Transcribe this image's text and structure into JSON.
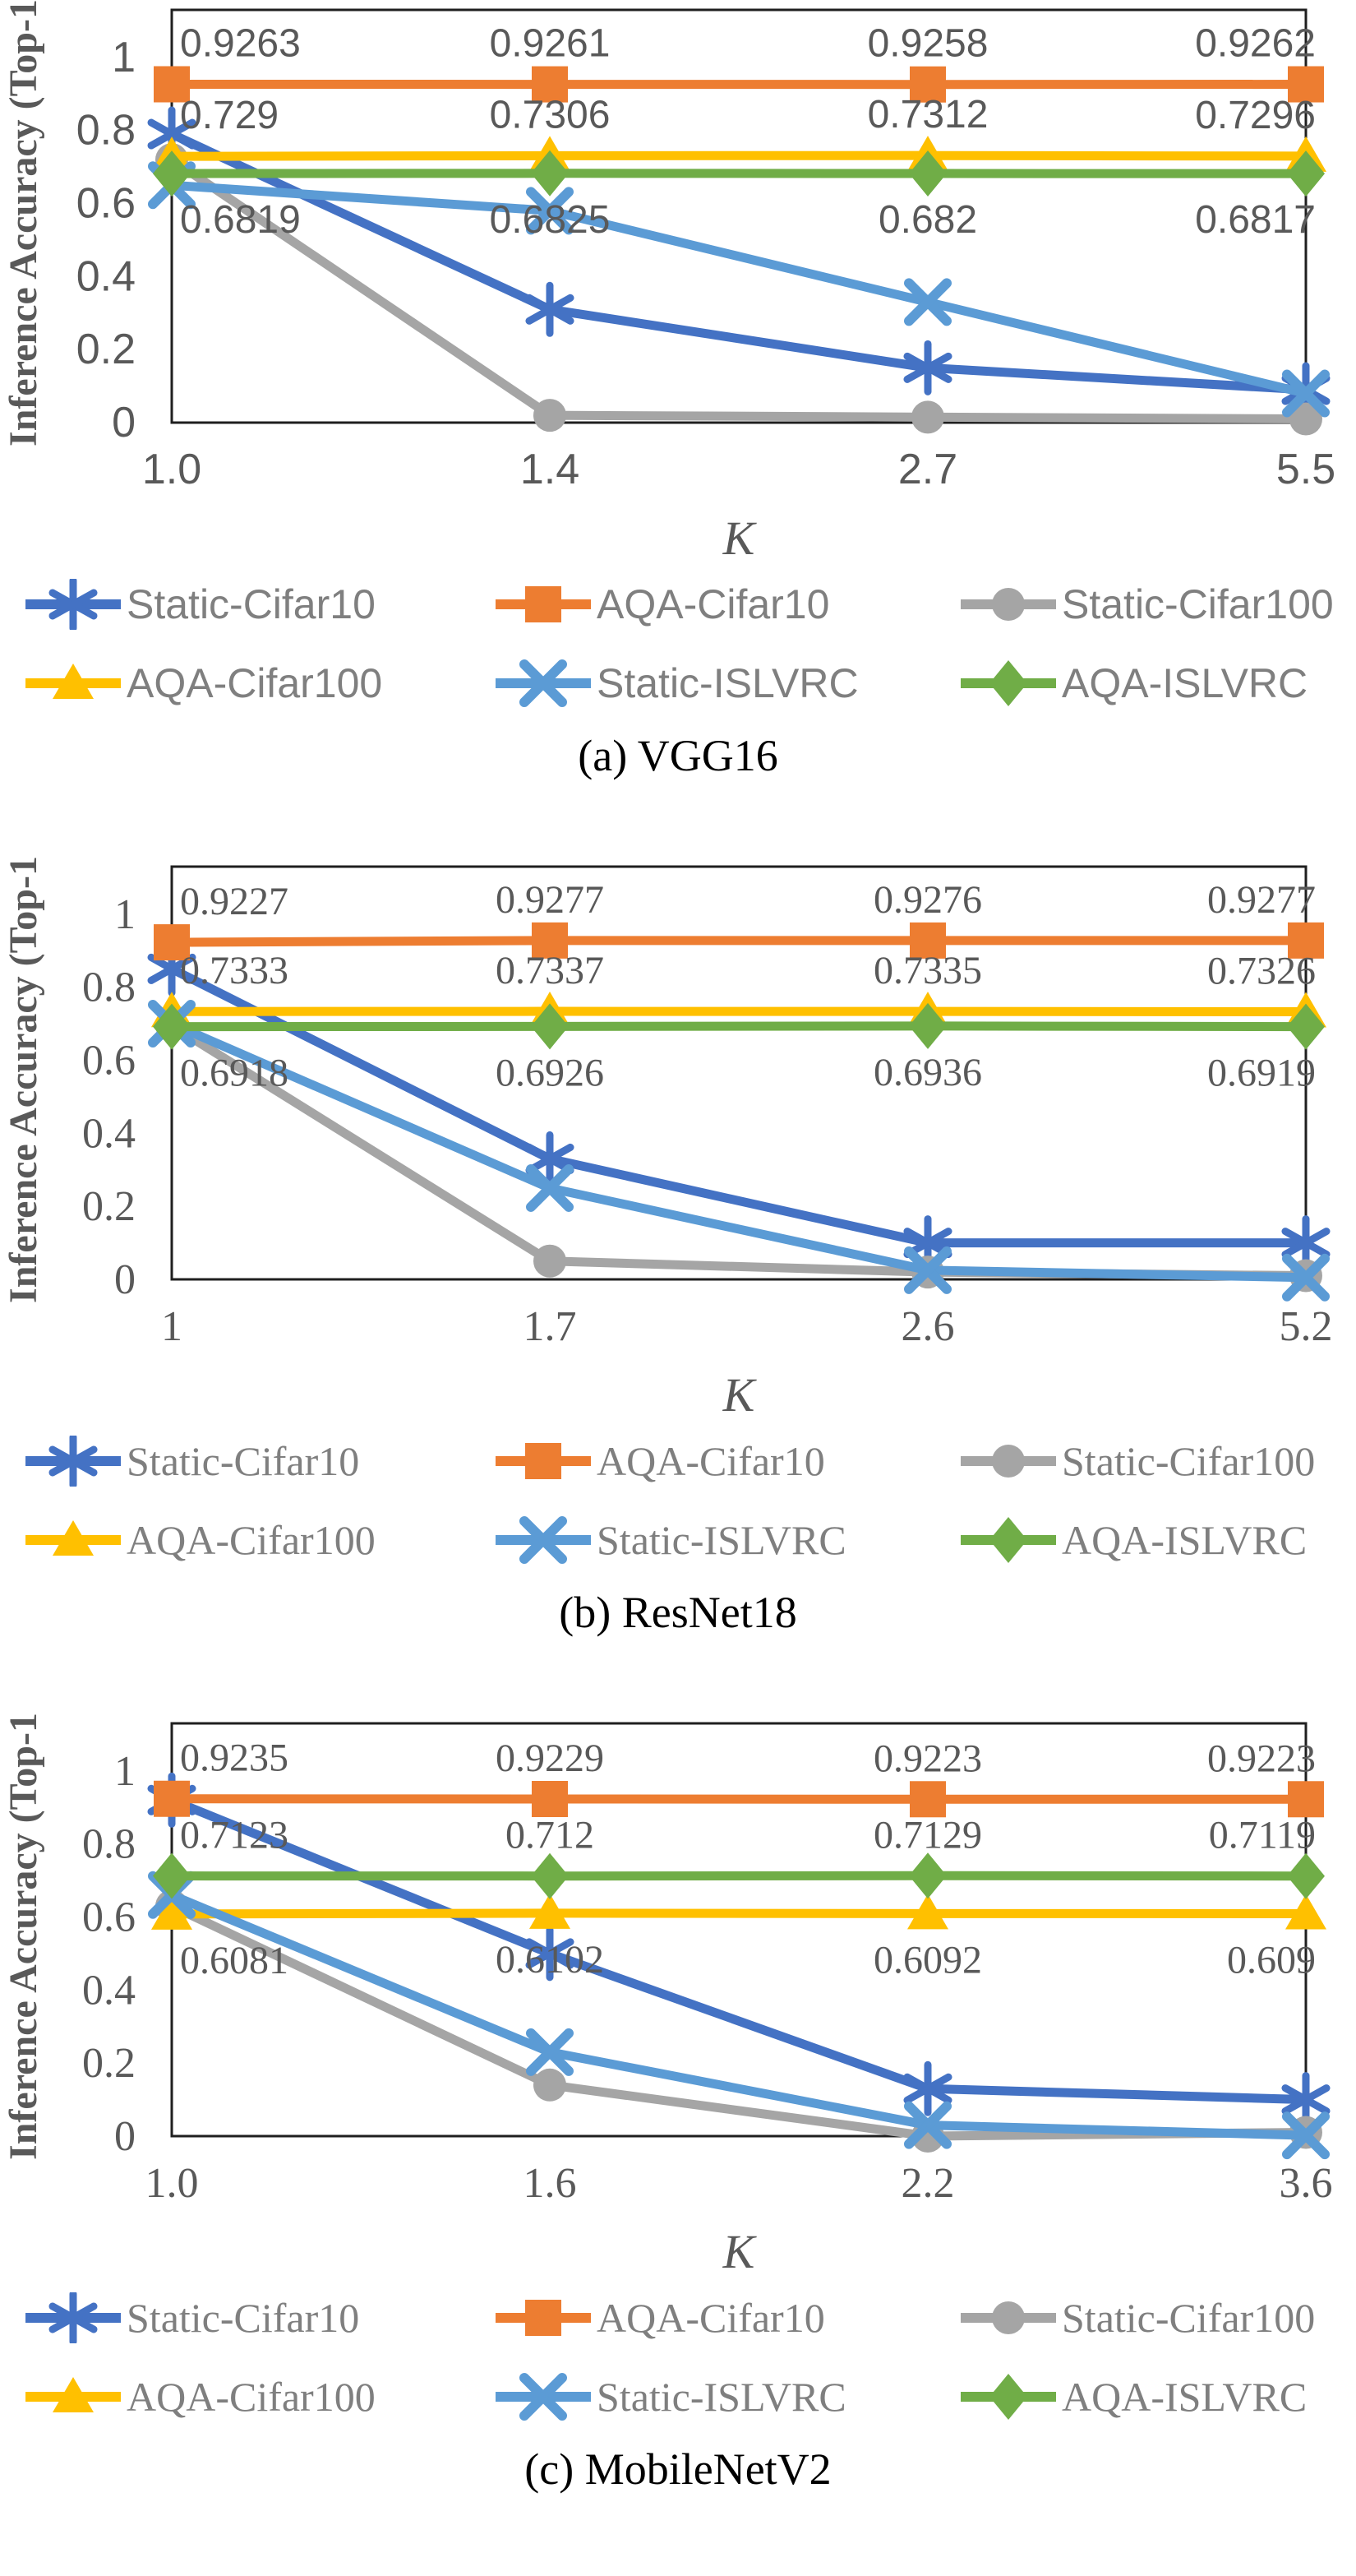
{
  "figure": {
    "y_axis_label": "Inference Accuracy (Top-1)",
    "x_axis_label": "K",
    "y_ticks": [
      "1",
      "0.8",
      "0.6",
      "0.4",
      "0.2",
      "0"
    ],
    "text_color": "#595959",
    "legend_text_color": "#7f7f7f",
    "axis_color": "#1f1f1f",
    "background": "#ffffff"
  },
  "chart_data": [
    {
      "type": "line",
      "caption": "(a) VGG16",
      "font": "sans",
      "xlabel": "K",
      "ylabel": "Inference Accuracy (Top-1)",
      "ylim": [
        0,
        1
      ],
      "x_ticks": [
        "1.0",
        "1.4",
        "2.7",
        "5.5"
      ],
      "series": [
        {
          "name": "Static-Cifar10",
          "color": "#4472C4",
          "marker": "asterisk",
          "values": [
            0.79,
            0.31,
            0.15,
            0.09
          ]
        },
        {
          "name": "AQA-Cifar10",
          "color": "#ED7D31",
          "marker": "square",
          "values": [
            0.9263,
            0.9261,
            0.9258,
            0.9262
          ],
          "labels": [
            "0.9263",
            "0.9261",
            "0.9258",
            "0.9262"
          ],
          "label_side": "above"
        },
        {
          "name": "Static-Cifar100",
          "color": "#A5A5A5",
          "marker": "circle",
          "values": [
            0.72,
            0.02,
            0.015,
            0.01
          ]
        },
        {
          "name": "AQA-Cifar100",
          "color": "#FFC000",
          "marker": "triangle",
          "values": [
            0.729,
            0.7306,
            0.7312,
            0.7296
          ],
          "labels": [
            "0.729",
            "0.7306",
            "0.7312",
            "0.7296"
          ],
          "label_side": "above"
        },
        {
          "name": "Static-ISLVRC",
          "color": "#5B9BD5",
          "marker": "x",
          "values": [
            0.65,
            0.58,
            0.33,
            0.08
          ]
        },
        {
          "name": "AQA-ISLVRC",
          "color": "#70AD47",
          "marker": "diamond",
          "values": [
            0.6819,
            0.6825,
            0.682,
            0.6817
          ],
          "labels": [
            "0.6819",
            "0.6825",
            "0.682",
            "0.6817"
          ],
          "label_side": "below"
        }
      ]
    },
    {
      "type": "line",
      "caption": "(b) ResNet18",
      "font": "serif",
      "xlabel": "K",
      "ylabel": "Inference Accuracy (Top-1)",
      "ylim": [
        0,
        1
      ],
      "x_ticks": [
        "1",
        "1.7",
        "2.6",
        "5.2"
      ],
      "series": [
        {
          "name": "Static-Cifar10",
          "color": "#4472C4",
          "marker": "asterisk",
          "values": [
            0.85,
            0.33,
            0.1,
            0.1
          ]
        },
        {
          "name": "AQA-Cifar10",
          "color": "#ED7D31",
          "marker": "square",
          "values": [
            0.9227,
            0.9277,
            0.9276,
            0.9277
          ],
          "labels": [
            "0.9227",
            "0.9277",
            "0.9276",
            "0.9277"
          ],
          "label_side": "above"
        },
        {
          "name": "Static-Cifar100",
          "color": "#A5A5A5",
          "marker": "circle",
          "values": [
            0.695,
            0.05,
            0.02,
            0.01
          ]
        },
        {
          "name": "AQA-Cifar100",
          "color": "#FFC000",
          "marker": "triangle",
          "values": [
            0.7333,
            0.7337,
            0.7335,
            0.7326
          ],
          "labels": [
            "0.7333",
            "0.7337",
            "0.7335",
            "0.7326"
          ],
          "label_side": "above"
        },
        {
          "name": "Static-ISLVRC",
          "color": "#5B9BD5",
          "marker": "x",
          "values": [
            0.7,
            0.25,
            0.025,
            0.005
          ]
        },
        {
          "name": "AQA-ISLVRC",
          "color": "#70AD47",
          "marker": "diamond",
          "values": [
            0.6918,
            0.6926,
            0.6936,
            0.6919
          ],
          "labels": [
            "0.6918",
            "0.6926",
            "0.6936",
            "0.6919"
          ],
          "label_side": "below"
        }
      ]
    },
    {
      "type": "line",
      "caption": "(c) MobileNetV2",
      "font": "serif",
      "xlabel": "K",
      "ylabel": "Inference Accuracy (Top-1)",
      "ylim": [
        0,
        1
      ],
      "x_ticks": [
        "1.0",
        "1.6",
        "2.2",
        "3.6"
      ],
      "series": [
        {
          "name": "Static-Cifar10",
          "color": "#4472C4",
          "marker": "asterisk",
          "values": [
            0.92,
            0.5,
            0.13,
            0.1
          ]
        },
        {
          "name": "AQA-Cifar10",
          "color": "#ED7D31",
          "marker": "square",
          "values": [
            0.9235,
            0.9229,
            0.9223,
            0.9223
          ],
          "labels": [
            "0.9235",
            "0.9229",
            "0.9223",
            "0.9223"
          ],
          "label_side": "above"
        },
        {
          "name": "Static-Cifar100",
          "color": "#A5A5A5",
          "marker": "circle",
          "values": [
            0.63,
            0.14,
            0.0,
            0.01
          ]
        },
        {
          "name": "AQA-Cifar100",
          "color": "#FFC000",
          "marker": "triangle",
          "values": [
            0.6081,
            0.6102,
            0.6092,
            0.609
          ],
          "labels": [
            "0.6081",
            "0.6102",
            "0.6092",
            "0.609"
          ],
          "label_side": "below"
        },
        {
          "name": "Static-ISLVRC",
          "color": "#5B9BD5",
          "marker": "x",
          "values": [
            0.66,
            0.23,
            0.03,
            0.002
          ]
        },
        {
          "name": "AQA-ISLVRC",
          "color": "#70AD47",
          "marker": "diamond",
          "values": [
            0.7123,
            0.712,
            0.7129,
            0.7119
          ],
          "labels": [
            "0.7123",
            "0.712",
            "0.7129",
            "0.7119"
          ],
          "label_side": "above"
        }
      ]
    }
  ]
}
